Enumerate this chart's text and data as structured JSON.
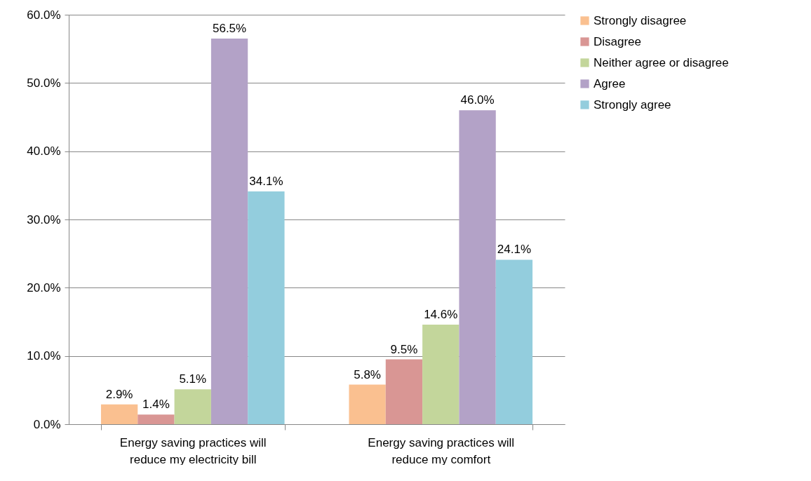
{
  "chart_data": {
    "type": "bar",
    "categories": [
      "Energy saving practices will reduce my electricity bill",
      "Energy saving practices will reduce my comfort"
    ],
    "series": [
      {
        "name": "Strongly disagree",
        "color": "#fac090",
        "values": [
          2.9,
          5.8
        ],
        "value_labels": [
          "2.9%",
          "5.8%"
        ]
      },
      {
        "name": "Disagree",
        "color": "#d99694",
        "values": [
          1.4,
          9.5
        ],
        "value_labels": [
          "1.4%",
          "9.5%"
        ]
      },
      {
        "name": "Neither agree or disagree",
        "color": "#c3d69b",
        "values": [
          5.1,
          14.6
        ],
        "value_labels": [
          "5.1%",
          "14.6%"
        ]
      },
      {
        "name": "Agree",
        "color": "#b3a2c7",
        "values": [
          56.5,
          46.0
        ],
        "value_labels": [
          "56.5%",
          "46.0%"
        ]
      },
      {
        "name": "Strongly agree",
        "color": "#93cddd",
        "values": [
          34.1,
          24.1
        ],
        "value_labels": [
          "34.1%",
          "24.1%"
        ]
      }
    ],
    "ylim": [
      0,
      60
    ],
    "yticks": [
      {
        "value": 0,
        "label": "0.0%"
      },
      {
        "value": 10,
        "label": "10.0%"
      },
      {
        "value": 20,
        "label": "20.0%"
      },
      {
        "value": 30,
        "label": "30.0%"
      },
      {
        "value": 40,
        "label": "40.0%"
      },
      {
        "value": 50,
        "label": "50.0%"
      },
      {
        "value": 60,
        "label": "60.0%"
      }
    ],
    "grid": "y",
    "legend": "right"
  }
}
